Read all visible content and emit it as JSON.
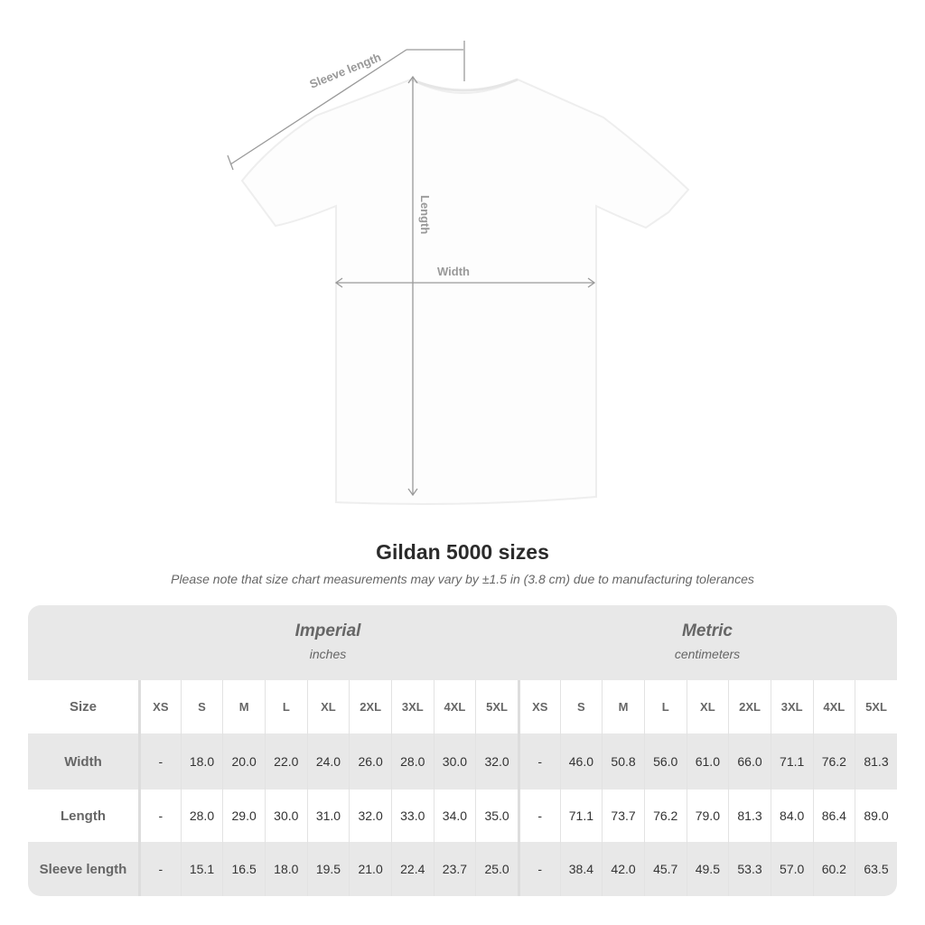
{
  "diagram": {
    "labels": {
      "sleeve": "Sleeve length",
      "length": "Length",
      "width": "Width"
    }
  },
  "title": "Gildan 5000 sizes",
  "subtitle": "Please note that size chart measurements may vary by ±1.5 in (3.8 cm) due to manufacturing tolerances",
  "table": {
    "imperial": {
      "name": "Imperial",
      "unit": "inches"
    },
    "metric": {
      "name": "Metric",
      "unit": "centimeters"
    },
    "size_label": "Size",
    "sizes": [
      "XS",
      "S",
      "M",
      "L",
      "XL",
      "2XL",
      "3XL",
      "4XL",
      "5XL"
    ],
    "rows": [
      {
        "label": "Width",
        "imperial": [
          "-",
          "18.0",
          "20.0",
          "22.0",
          "24.0",
          "26.0",
          "28.0",
          "30.0",
          "32.0"
        ],
        "metric": [
          "-",
          "46.0",
          "50.8",
          "56.0",
          "61.0",
          "66.0",
          "71.1",
          "76.2",
          "81.3"
        ]
      },
      {
        "label": "Length",
        "imperial": [
          "-",
          "28.0",
          "29.0",
          "30.0",
          "31.0",
          "32.0",
          "33.0",
          "34.0",
          "35.0"
        ],
        "metric": [
          "-",
          "71.1",
          "73.7",
          "76.2",
          "79.0",
          "81.3",
          "84.0",
          "86.4",
          "89.0"
        ]
      },
      {
        "label": "Sleeve length",
        "imperial": [
          "-",
          "15.1",
          "16.5",
          "18.0",
          "19.5",
          "21.0",
          "22.4",
          "23.7",
          "25.0"
        ],
        "metric": [
          "-",
          "38.4",
          "42.0",
          "45.7",
          "49.5",
          "53.3",
          "57.0",
          "60.2",
          "63.5"
        ]
      }
    ]
  }
}
